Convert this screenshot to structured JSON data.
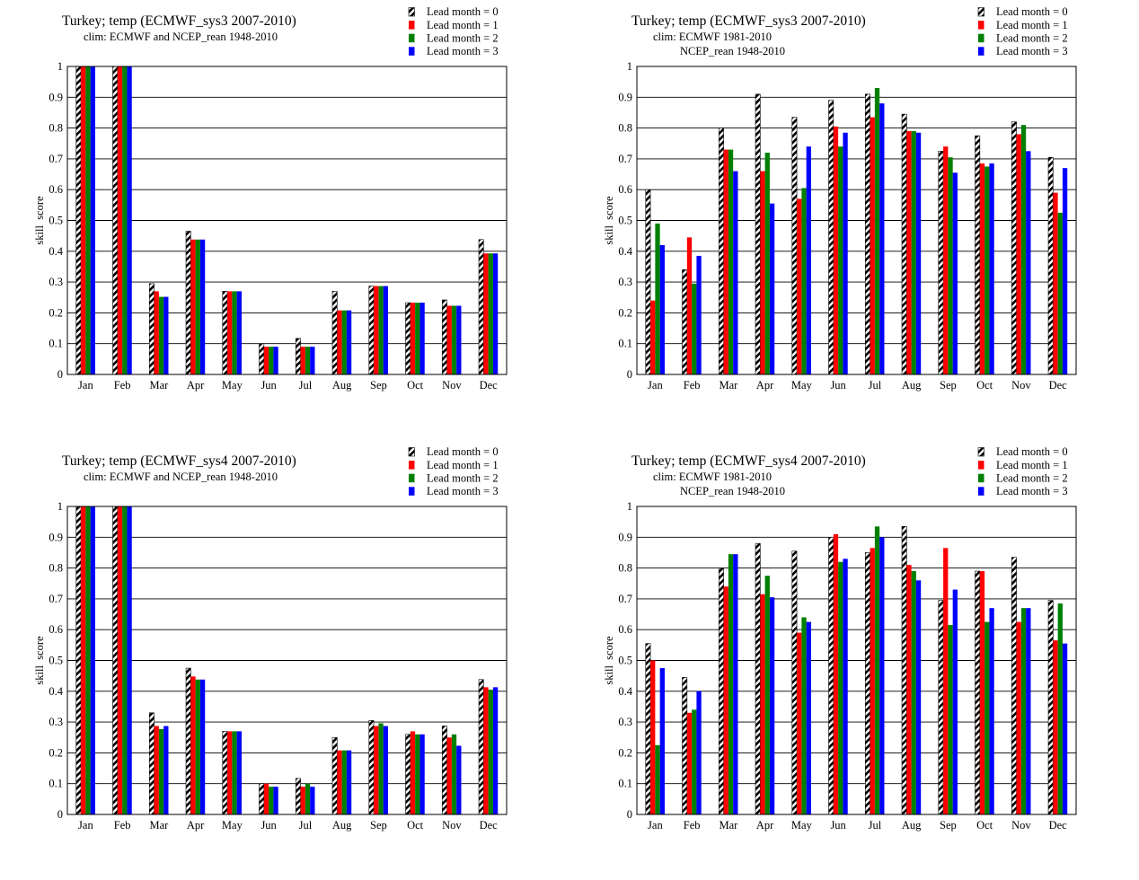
{
  "colors": {
    "lead0": "hatched-black-white",
    "lead1": "#ff0000",
    "lead2": "#008000",
    "lead3": "#0000ff",
    "gridline": "#000000",
    "background": "#ffffff"
  },
  "chart_data": [
    {
      "type": "bar",
      "title": "Turkey; temp (ECMWF_sys3 2007-2010)",
      "subtitle": [
        "clim: ECMWF and NCEP_rean 1948-2010"
      ],
      "ylabel": "skill  score",
      "xlabel": "",
      "ylim": [
        0,
        1
      ],
      "yticks": [
        "0",
        "0.1",
        "0.2",
        "0.3",
        "0.4",
        "0.5",
        "0.6",
        "0.7",
        "0.8",
        "0.9",
        "1"
      ],
      "grid": "horizontal",
      "legend_position": "top-right",
      "categories": [
        "Jan",
        "Feb",
        "Mar",
        "Apr",
        "May",
        "Jun",
        "Jul",
        "Aug",
        "Sep",
        "Oct",
        "Nov",
        "Dec"
      ],
      "series": [
        {
          "name": "Lead month = 0",
          "values": [
            1,
            1,
            0.295,
            0.465,
            0.27,
            0.1,
            0.117,
            0.27,
            0.287,
            0.233,
            0.242,
            0.438
          ]
        },
        {
          "name": "Lead month = 1",
          "values": [
            1,
            1,
            0.27,
            0.438,
            0.27,
            0.09,
            0.09,
            0.208,
            0.287,
            0.233,
            0.223,
            0.393
          ]
        },
        {
          "name": "Lead month = 2",
          "values": [
            1,
            1,
            0.252,
            0.438,
            0.27,
            0.09,
            0.09,
            0.208,
            0.287,
            0.233,
            0.223,
            0.393
          ]
        },
        {
          "name": "Lead month = 3",
          "values": [
            1,
            1,
            0.252,
            0.438,
            0.27,
            0.09,
            0.09,
            0.208,
            0.287,
            0.233,
            0.223,
            0.393
          ]
        }
      ]
    },
    {
      "type": "bar",
      "title": "Turkey; temp (ECMWF_sys3 2007-2010)",
      "subtitle": [
        "clim: ECMWF 1981-2010",
        "NCEP_rean 1948-2010"
      ],
      "ylabel": "skill  score",
      "xlabel": "",
      "ylim": [
        0,
        1
      ],
      "yticks": [
        "0",
        "0.1",
        "0.2",
        "0.3",
        "0.4",
        "0.5",
        "0.6",
        "0.7",
        "0.8",
        "0.9",
        "1"
      ],
      "grid": "horizontal",
      "legend_position": "top-right",
      "categories": [
        "Jan",
        "Feb",
        "Mar",
        "Apr",
        "May",
        "Jun",
        "Jul",
        "Aug",
        "Sep",
        "Oct",
        "Nov",
        "Dec"
      ],
      "series": [
        {
          "name": "Lead month = 0",
          "values": [
            0.6,
            0.34,
            0.8,
            0.91,
            0.835,
            0.89,
            0.91,
            0.845,
            0.725,
            0.775,
            0.82,
            0.705
          ]
        },
        {
          "name": "Lead month = 1",
          "values": [
            0.24,
            0.445,
            0.73,
            0.66,
            0.57,
            0.805,
            0.835,
            0.79,
            0.74,
            0.685,
            0.78,
            0.59
          ]
        },
        {
          "name": "Lead month = 2",
          "values": [
            0.49,
            0.295,
            0.73,
            0.72,
            0.605,
            0.74,
            0.93,
            0.79,
            0.705,
            0.675,
            0.81,
            0.525
          ]
        },
        {
          "name": "Lead month = 3",
          "values": [
            0.42,
            0.385,
            0.66,
            0.555,
            0.74,
            0.785,
            0.88,
            0.785,
            0.655,
            0.685,
            0.725,
            0.67
          ]
        }
      ]
    },
    {
      "type": "bar",
      "title": "Turkey; temp (ECMWF_sys4 2007-2010)",
      "subtitle": [
        "clim: ECMWF and NCEP_rean 1948-2010"
      ],
      "ylabel": "skill  score",
      "xlabel": "",
      "ylim": [
        0,
        1
      ],
      "yticks": [
        "0",
        "0.1",
        "0.2",
        "0.3",
        "0.4",
        "0.5",
        "0.6",
        "0.7",
        "0.8",
        "0.9",
        "1"
      ],
      "grid": "horizontal",
      "legend_position": "top-right",
      "categories": [
        "Jan",
        "Feb",
        "Mar",
        "Apr",
        "May",
        "Jun",
        "Jul",
        "Aug",
        "Sep",
        "Oct",
        "Nov",
        "Dec"
      ],
      "series": [
        {
          "name": "Lead month = 0",
          "values": [
            1,
            1,
            0.33,
            0.475,
            0.27,
            0.1,
            0.117,
            0.25,
            0.305,
            0.26,
            0.287,
            0.438
          ]
        },
        {
          "name": "Lead month = 1",
          "values": [
            1,
            1,
            0.287,
            0.448,
            0.27,
            0.1,
            0.09,
            0.208,
            0.287,
            0.27,
            0.25,
            0.413
          ]
        },
        {
          "name": "Lead month = 2",
          "values": [
            1,
            1,
            0.277,
            0.438,
            0.27,
            0.09,
            0.1,
            0.208,
            0.296,
            0.26,
            0.26,
            0.405
          ]
        },
        {
          "name": "Lead month = 3",
          "values": [
            1,
            1,
            0.287,
            0.438,
            0.27,
            0.09,
            0.09,
            0.208,
            0.287,
            0.26,
            0.223,
            0.413
          ]
        }
      ]
    },
    {
      "type": "bar",
      "title": "Turkey; temp (ECMWF_sys4 2007-2010)",
      "subtitle": [
        "clim: ECMWF 1981-2010",
        "NCEP_rean 1948-2010"
      ],
      "ylabel": "skill  score",
      "xlabel": "",
      "ylim": [
        0,
        1
      ],
      "yticks": [
        "0",
        "0.1",
        "0.2",
        "0.3",
        "0.4",
        "0.5",
        "0.6",
        "0.7",
        "0.8",
        "0.9",
        "1"
      ],
      "grid": "horizontal",
      "legend_position": "top-right",
      "categories": [
        "Jan",
        "Feb",
        "Mar",
        "Apr",
        "May",
        "Jun",
        "Jul",
        "Aug",
        "Sep",
        "Oct",
        "Nov",
        "Dec"
      ],
      "series": [
        {
          "name": "Lead month = 0",
          "values": [
            0.555,
            0.445,
            0.8,
            0.88,
            0.855,
            0.9,
            0.85,
            0.935,
            0.695,
            0.79,
            0.835,
            0.695
          ]
        },
        {
          "name": "Lead month = 1",
          "values": [
            0.5,
            0.33,
            0.74,
            0.715,
            0.59,
            0.91,
            0.865,
            0.81,
            0.865,
            0.79,
            0.625,
            0.565
          ]
        },
        {
          "name": "Lead month = 2",
          "values": [
            0.225,
            0.34,
            0.845,
            0.775,
            0.64,
            0.82,
            0.935,
            0.79,
            0.615,
            0.625,
            0.67,
            0.685
          ]
        },
        {
          "name": "Lead month = 3",
          "values": [
            0.475,
            0.4,
            0.845,
            0.705,
            0.625,
            0.83,
            0.9,
            0.76,
            0.73,
            0.67,
            0.67,
            0.555
          ]
        }
      ]
    }
  ]
}
